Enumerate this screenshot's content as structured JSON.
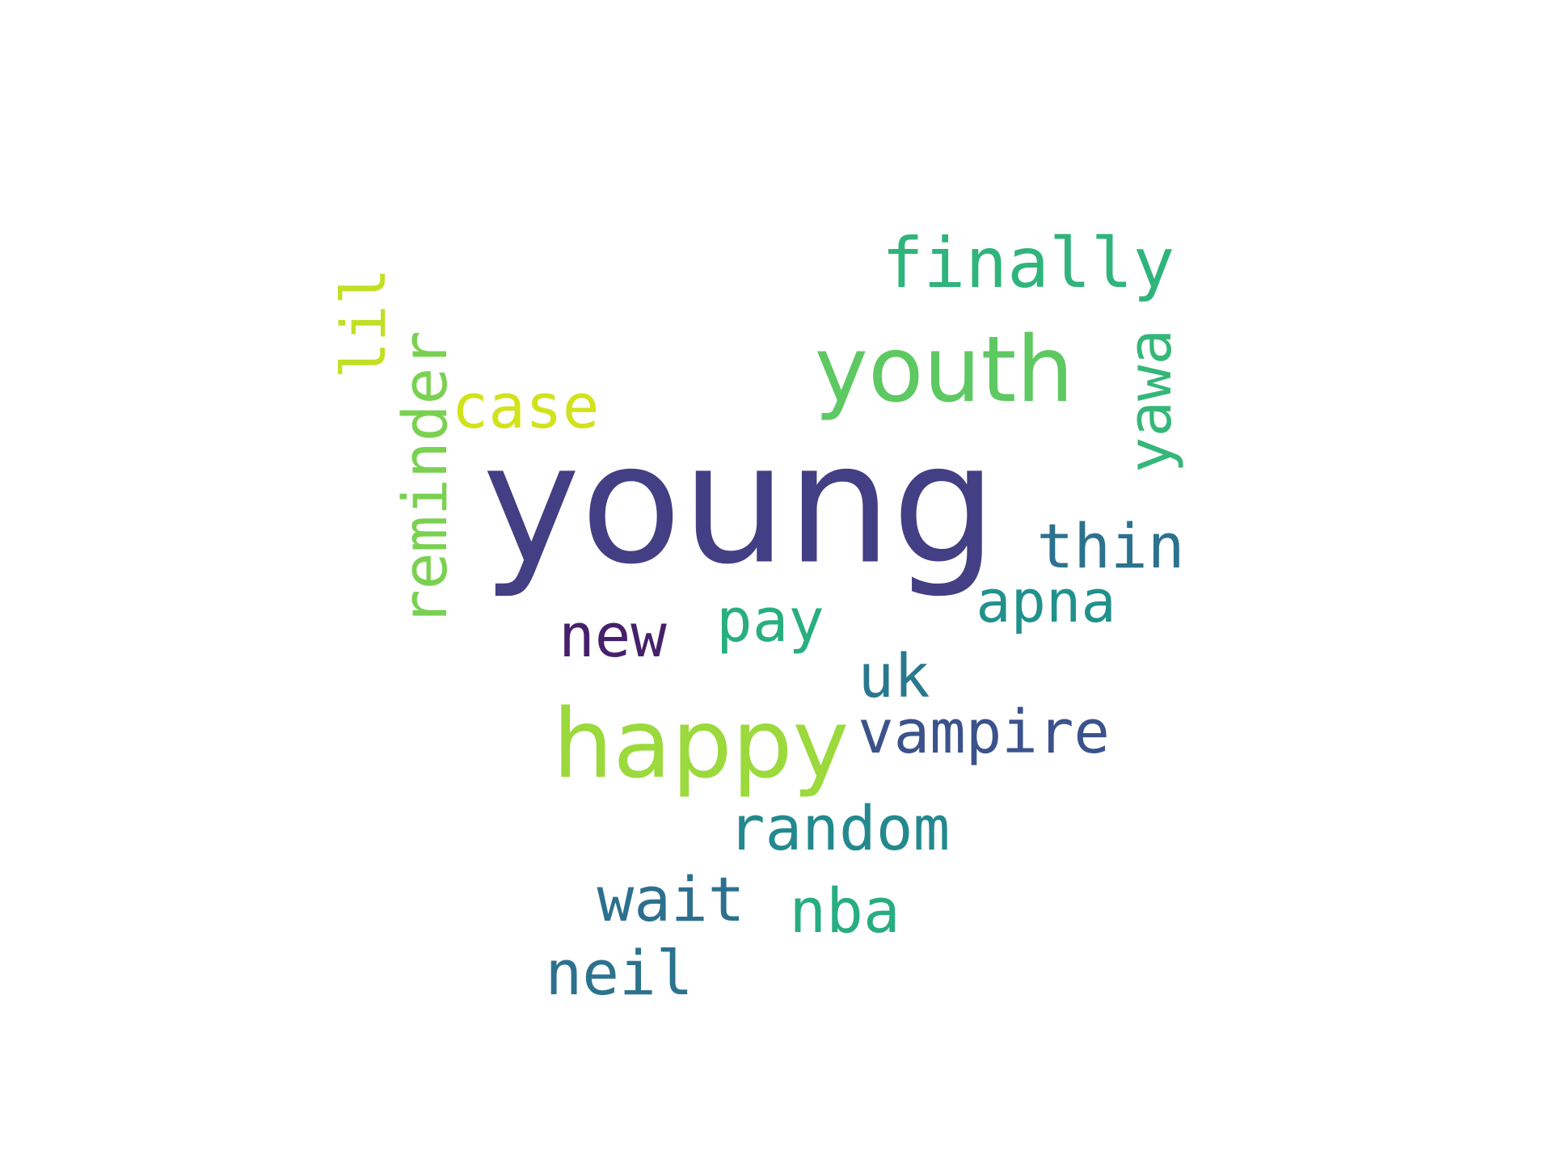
{
  "words": {
    "young": {
      "text": "young",
      "color": "#433f84"
    },
    "youth": {
      "text": "youth",
      "color": "#5ec962"
    },
    "happy": {
      "text": "happy",
      "color": "#9bd93c"
    },
    "finally": {
      "text": "finally",
      "color": "#2fb47c"
    },
    "lil": {
      "text": "lil",
      "color": "#c2df23"
    },
    "reminder": {
      "text": "reminder",
      "color": "#7ad151"
    },
    "case": {
      "text": "case",
      "color": "#d2e21b"
    },
    "yawa": {
      "text": "yawa",
      "color": "#35b779"
    },
    "thin": {
      "text": "thin",
      "color": "#2c728e"
    },
    "apna": {
      "text": "apna",
      "color": "#21918c"
    },
    "new": {
      "text": "new",
      "color": "#46206a"
    },
    "pay": {
      "text": "pay",
      "color": "#29af7f"
    },
    "uk": {
      "text": "uk",
      "color": "#2a788e"
    },
    "vampire": {
      "text": "vampire",
      "color": "#3b528b"
    },
    "random": {
      "text": "random",
      "color": "#23898e"
    },
    "wait": {
      "text": "wait",
      "color": "#2d708e"
    },
    "nba": {
      "text": "nba",
      "color": "#27ad81"
    },
    "neil": {
      "text": "neil",
      "color": "#2c728e"
    }
  }
}
